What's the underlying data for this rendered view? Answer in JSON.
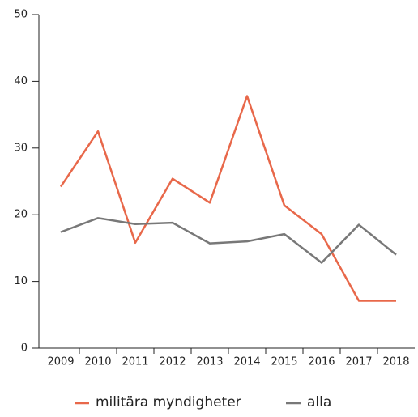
{
  "chart_data": {
    "type": "line",
    "categories": [
      "2009",
      "2010",
      "2011",
      "2012",
      "2013",
      "2014",
      "2015",
      "2016",
      "2017",
      "2018"
    ],
    "series": [
      {
        "name": "militära myndigheter",
        "color": "#e8684a",
        "values": [
          24.2,
          32.5,
          15.8,
          25.4,
          21.8,
          37.8,
          21.4,
          17.1,
          7.1,
          7.1
        ]
      },
      {
        "name": "alla",
        "color": "#787878",
        "values": [
          17.4,
          19.5,
          18.6,
          18.8,
          15.7,
          16.0,
          17.1,
          12.8,
          18.5,
          14.0
        ]
      }
    ],
    "ylim": [
      0,
      50
    ],
    "yticks": [
      0,
      10,
      20,
      30,
      40,
      50
    ],
    "grid": false,
    "legend": "bottom"
  }
}
